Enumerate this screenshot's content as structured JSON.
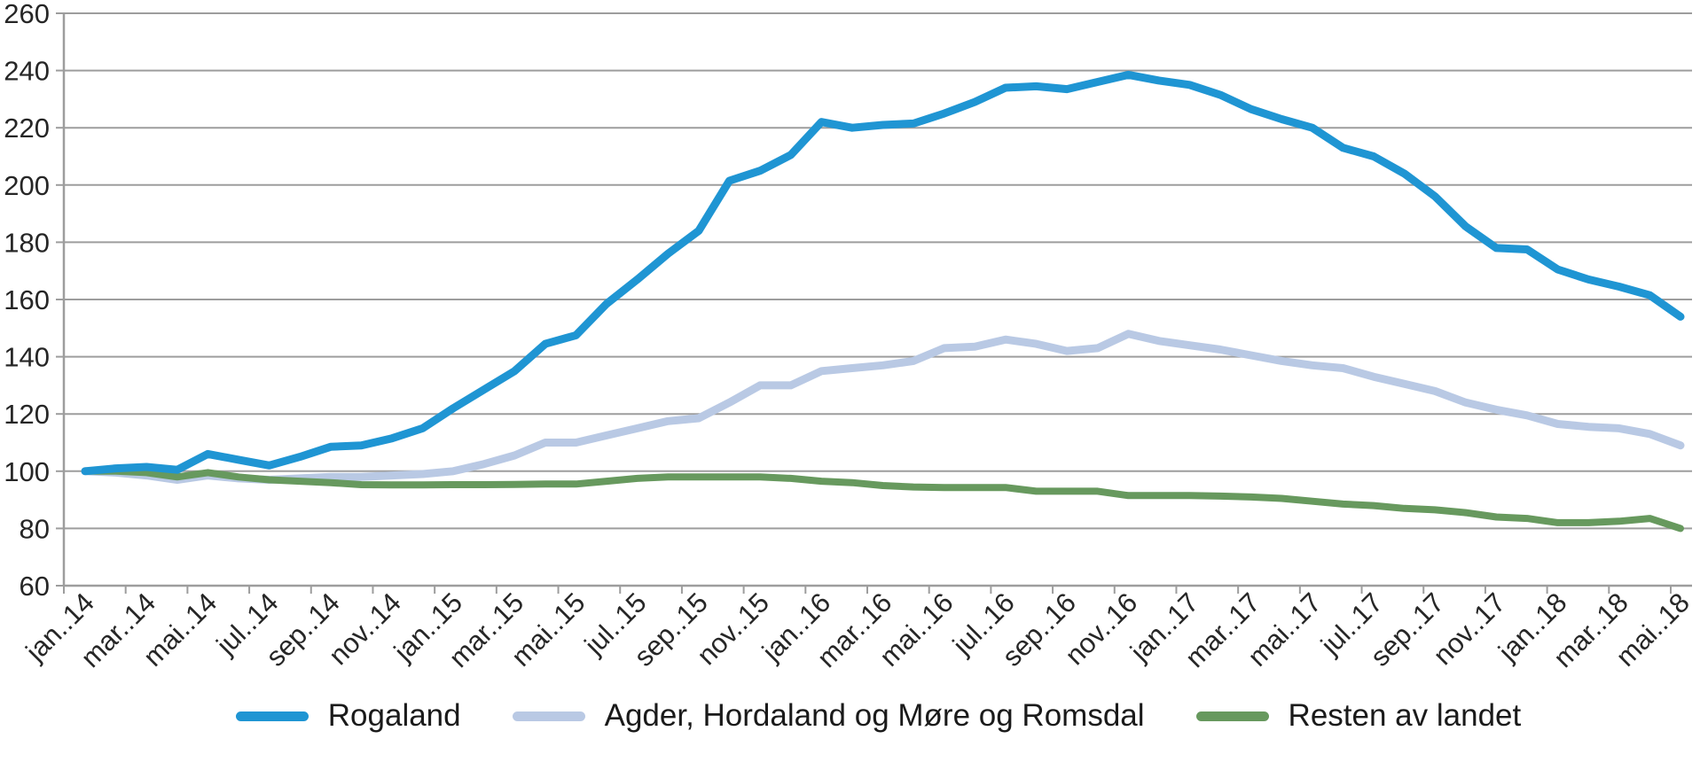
{
  "page": {
    "background": "#ffffff"
  },
  "chart_data": {
    "type": "line",
    "title": "",
    "xlabel": "",
    "ylabel": "",
    "grid": true,
    "legend_position": "bottom",
    "axis_color": "#9d9d9d",
    "label_color": "#262626",
    "y_axis": {
      "min": 60,
      "max": 260,
      "step": 20,
      "tick_labels": [
        "60",
        "80",
        "100",
        "120",
        "140",
        "160",
        "180",
        "200",
        "220",
        "240",
        "260"
      ]
    },
    "x": [
      "jan.14",
      "feb.14",
      "mar.14",
      "apr.14",
      "mai.14",
      "jun.14",
      "jul.14",
      "aug.14",
      "sep.14",
      "okt.14",
      "nov.14",
      "des.14",
      "jan.15",
      "feb.15",
      "mar.15",
      "apr.15",
      "mai.15",
      "jun.15",
      "jul.15",
      "aug.15",
      "sep.15",
      "okt.15",
      "nov.15",
      "des.15",
      "jan.16",
      "feb.16",
      "mar.16",
      "apr.16",
      "mai.16",
      "jun.16",
      "jul.16",
      "aug.16",
      "sep.16",
      "okt.16",
      "nov.16",
      "des.16",
      "jan.17",
      "feb.17",
      "mar.17",
      "apr.17",
      "mai.17",
      "jun.17",
      "jul.17",
      "aug.17",
      "sep.17",
      "okt.17",
      "nov.17",
      "des.17",
      "jan.18",
      "feb.18",
      "mar.18",
      "apr.18",
      "mai.18"
    ],
    "x_tick_labels": [
      "jan..14",
      "mar..14",
      "mai..14",
      "jul..14",
      "sep..14",
      "nov..14",
      "jan..15",
      "mar..15",
      "mai..15",
      "jul..15",
      "sep..15",
      "nov..15",
      "jan..16",
      "mar..16",
      "mai..16",
      "jul..16",
      "sep..16",
      "nov..16",
      "jan..17",
      "mar..17",
      "mai..17",
      "jul..17",
      "sep..17",
      "nov..17",
      "jan..18",
      "mar..18",
      "mai..18"
    ],
    "series": [
      {
        "name": "Rogaland",
        "color": "#1f95d3",
        "stroke_width": 9,
        "values": [
          100,
          101,
          101.5,
          100.5,
          106,
          104,
          102,
          105,
          108.5,
          109,
          111.5,
          115,
          122,
          128.5,
          135,
          144.5,
          147.5,
          158.5,
          167,
          176,
          184,
          201.5,
          205,
          210.5,
          222,
          220,
          221,
          221.5,
          225,
          229,
          234,
          234.5,
          233.5,
          236,
          238.5,
          236.5,
          235,
          231.5,
          226.5,
          223,
          220,
          213,
          210,
          204,
          196,
          185.5,
          178,
          177.5,
          170.5,
          167,
          164.5,
          161.5,
          154
        ]
      },
      {
        "name": "Agder, Hordaland og Møre og Romsdal",
        "color": "#b9c9e4",
        "stroke_width": 9,
        "values": [
          100,
          99.5,
          98.5,
          97,
          98.5,
          97.5,
          97,
          97.5,
          98,
          98,
          98.5,
          99,
          100,
          102.5,
          105.5,
          110,
          110,
          112.5,
          115,
          117.5,
          118.5,
          124,
          130,
          130,
          135,
          136,
          137,
          138.5,
          143,
          143.5,
          146,
          144.5,
          142,
          143,
          148,
          145.5,
          144,
          142.5,
          140.5,
          138.5,
          137,
          136,
          133,
          130.5,
          128,
          124,
          121.5,
          119.5,
          116.5,
          115.5,
          115,
          113,
          109
        ]
      },
      {
        "name": "Resten av landet",
        "color": "#67995e",
        "stroke_width": 8,
        "values": [
          100,
          100,
          99.5,
          98,
          99.5,
          98,
          97,
          96.5,
          96,
          95.3,
          95.2,
          95.2,
          95.3,
          95.3,
          95.4,
          95.5,
          95.5,
          96.5,
          97.5,
          98,
          98,
          98,
          98,
          97.5,
          96.5,
          96,
          95,
          94.5,
          94.3,
          94.3,
          94.3,
          93,
          93,
          93,
          91.5,
          91.5,
          91.5,
          91.3,
          91,
          90.5,
          89.5,
          88.5,
          88,
          87,
          86.5,
          85.5,
          84,
          83.5,
          82,
          82,
          82.5,
          83.5,
          80
        ]
      }
    ]
  }
}
